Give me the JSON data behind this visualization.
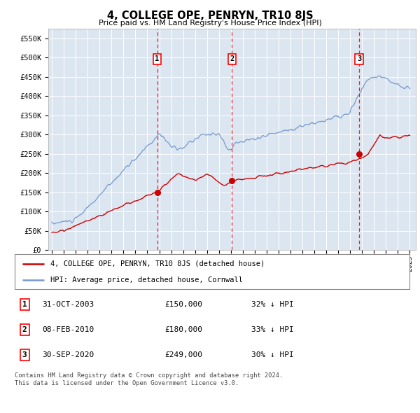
{
  "title": "4, COLLEGE OPE, PENRYN, TR10 8JS",
  "subtitle": "Price paid vs. HM Land Registry's House Price Index (HPI)",
  "background_color": "#ffffff",
  "plot_bg_color": "#dce6f1",
  "grid_color": "#ffffff",
  "hpi_color": "#7799cc",
  "price_color": "#cc0000",
  "ylim": [
    0,
    575000
  ],
  "yticks": [
    0,
    50000,
    100000,
    150000,
    200000,
    250000,
    300000,
    350000,
    400000,
    450000,
    500000,
    550000
  ],
  "ytick_labels": [
    "£0",
    "£50K",
    "£100K",
    "£150K",
    "£200K",
    "£250K",
    "£300K",
    "£350K",
    "£400K",
    "£450K",
    "£500K",
    "£550K"
  ],
  "sale_year_nums": [
    2003.83,
    2010.1,
    2020.75
  ],
  "sale_prices": [
    150000,
    180000,
    249000
  ],
  "sale_labels": [
    "1",
    "2",
    "3"
  ],
  "legend_entries": [
    "4, COLLEGE OPE, PENRYN, TR10 8JS (detached house)",
    "HPI: Average price, detached house, Cornwall"
  ],
  "table_rows": [
    [
      "1",
      "31-OCT-2003",
      "£150,000",
      "32% ↓ HPI"
    ],
    [
      "2",
      "08-FEB-2010",
      "£180,000",
      "33% ↓ HPI"
    ],
    [
      "3",
      "30-SEP-2020",
      "£249,000",
      "30% ↓ HPI"
    ]
  ],
  "footer": "Contains HM Land Registry data © Crown copyright and database right 2024.\nThis data is licensed under the Open Government Licence v3.0."
}
